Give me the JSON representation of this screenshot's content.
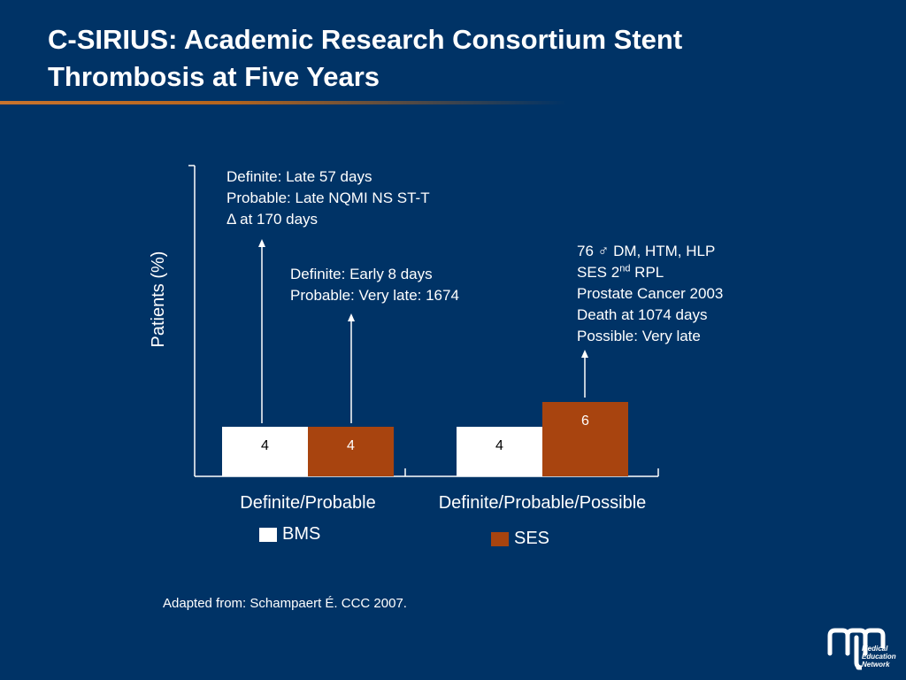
{
  "slide": {
    "title": "C-SIRIUS: Academic Research Consortium Stent Thrombosis at Five Years",
    "source": "Adapted from: Schampaert  É. CCC 2007.",
    "logo_text": [
      "Medical",
      "Education",
      "Network"
    ],
    "colors": {
      "background": "#003366",
      "accent": "#c8742e"
    }
  },
  "annotations": {
    "bms_definite": [
      "Definite: Late 57 days",
      "Probable: Late NQMI NS ST-T",
      "Δ at 170 days"
    ],
    "ses_definite": [
      "Definite: Early 8 days",
      "Probable: Very late: 1674"
    ],
    "ses_possible": {
      "line1": "76 ♂ DM, HTM, HLP",
      "line2_pre": "SES 2",
      "line2_sup": "nd",
      "line2_post": " RPL",
      "line3": "Prostate Cancer 2003",
      "line4": "Death at 1074 days",
      "line5": "Possible: Very late"
    }
  },
  "chart_data": {
    "type": "bar",
    "categories": [
      "Definite/Probable",
      "Definite/Probable/Possible"
    ],
    "series": [
      {
        "name": "BMS",
        "values": [
          4,
          4
        ],
        "color": "#ffffff"
      },
      {
        "name": "SES",
        "values": [
          4,
          6
        ],
        "color": "#a8440f"
      }
    ],
    "ylabel": "Patients (%)",
    "legend_position": "bottom",
    "value_label_color": "#000000"
  }
}
